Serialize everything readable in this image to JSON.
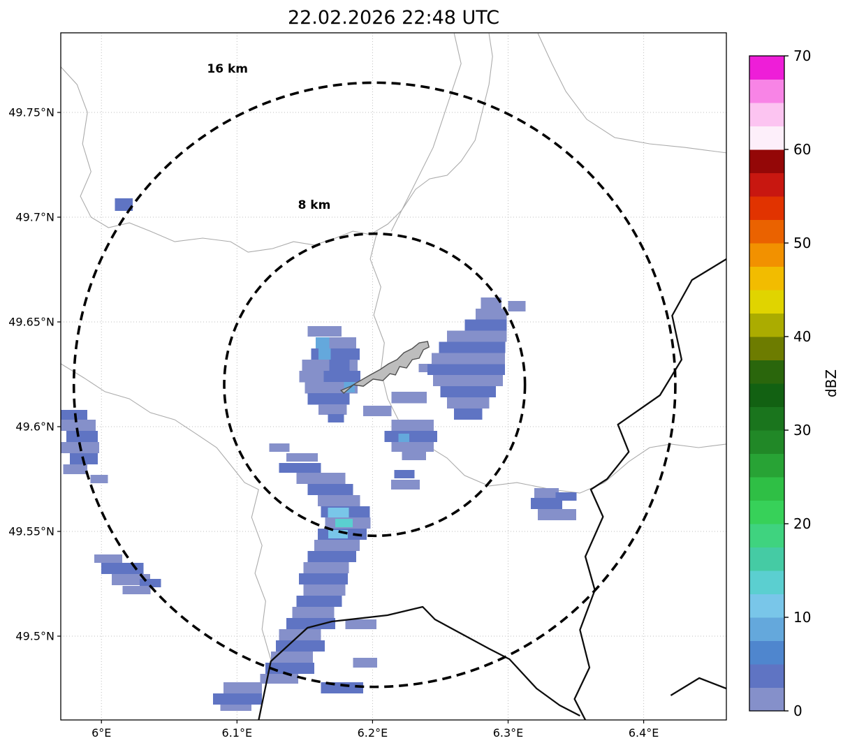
{
  "chart_data": {
    "type": "heatmap",
    "title": "22.02.2026 22:48 UTC",
    "xlabel": "",
    "ylabel": "",
    "xlim": [
      5.97,
      6.461
    ],
    "ylim": [
      49.46,
      49.788
    ],
    "grid": true,
    "x_ticks": [
      {
        "v": 6.0,
        "label": "6°E"
      },
      {
        "v": 6.1,
        "label": "6.1°E"
      },
      {
        "v": 6.2,
        "label": "6.2°E"
      },
      {
        "v": 6.3,
        "label": "6.3°E"
      },
      {
        "v": 6.4,
        "label": "6.4°E"
      }
    ],
    "y_ticks": [
      {
        "v": 49.5,
        "label": "49.5°N"
      },
      {
        "v": 49.55,
        "label": "49.55°N"
      },
      {
        "v": 49.6,
        "label": "49.6°N"
      },
      {
        "v": 49.65,
        "label": "49.65°N"
      },
      {
        "v": 49.7,
        "label": "49.7°N"
      },
      {
        "v": 49.75,
        "label": "49.75°N"
      }
    ],
    "colorbar": {
      "label": "dBZ",
      "min": 0,
      "max": 70,
      "step": 2.5,
      "ticks": [
        0,
        10,
        20,
        30,
        40,
        50,
        60,
        70
      ],
      "colors": [
        "#8590ca",
        "#5f74c3",
        "#4f86ce",
        "#64a8dc",
        "#79c6e9",
        "#5bcfd0",
        "#45cba4",
        "#3fd37f",
        "#37d159",
        "#2fbf45",
        "#28a335",
        "#218827",
        "#1a751d",
        "#126112",
        "#2a660c",
        "#6d7c00",
        "#abac00",
        "#e0d400",
        "#f2bc00",
        "#f29100",
        "#ea6200",
        "#e13300",
        "#c81710",
        "#940707",
        "#fdeffa",
        "#fcc4f1",
        "#f884e6",
        "#ee1ed8"
      ]
    },
    "range_rings": {
      "center_lon": 6.2015,
      "center_lat": 49.62,
      "rings": [
        {
          "radius_km": 8,
          "label": "8 km",
          "label_lon": 6.157,
          "label_lat": 49.706
        },
        {
          "radius_km": 16,
          "label": "16 km",
          "label_lon": 6.093,
          "label_lat": 49.771
        }
      ]
    },
    "echoes_format": [
      "lon_west",
      "lat_north",
      "width_deg",
      "height_deg",
      "dbz"
    ],
    "echoes": [
      [
        6.01,
        49.709,
        0.013,
        0.006,
        4
      ],
      [
        6.152,
        49.648,
        0.025,
        0.005,
        2
      ],
      [
        6.158,
        49.6427,
        0.03,
        0.0055,
        2
      ],
      [
        6.158,
        49.6427,
        0.01,
        0.0055,
        9
      ],
      [
        6.1546,
        49.6373,
        0.036,
        0.0055,
        4
      ],
      [
        6.16,
        49.6373,
        0.009,
        0.0055,
        9
      ],
      [
        6.148,
        49.632,
        0.041,
        0.0055,
        2
      ],
      [
        6.168,
        49.632,
        0.015,
        0.0055,
        4
      ],
      [
        6.146,
        49.6267,
        0.045,
        0.0055,
        4
      ],
      [
        6.146,
        49.6267,
        0.018,
        0.0055,
        2
      ],
      [
        6.15,
        49.6213,
        0.039,
        0.0055,
        2
      ],
      [
        6.179,
        49.6213,
        0.008,
        0.005,
        9
      ],
      [
        6.152,
        49.616,
        0.031,
        0.0055,
        4
      ],
      [
        6.16,
        49.6107,
        0.021,
        0.005,
        2
      ],
      [
        6.167,
        49.606,
        0.012,
        0.004,
        4
      ],
      [
        6.193,
        49.61,
        0.021,
        0.005,
        2
      ],
      [
        6.214,
        49.6167,
        0.026,
        0.0055,
        2
      ],
      [
        6.234,
        49.63,
        0.015,
        0.004,
        2
      ],
      [
        6.28,
        49.6617,
        0.015,
        0.0053,
        2
      ],
      [
        6.276,
        49.6564,
        0.023,
        0.0053,
        2
      ],
      [
        6.268,
        49.6511,
        0.031,
        0.0053,
        4
      ],
      [
        6.255,
        49.6458,
        0.044,
        0.0053,
        2
      ],
      [
        6.249,
        49.6405,
        0.049,
        0.0053,
        4
      ],
      [
        6.2437,
        49.6352,
        0.054,
        0.0053,
        2
      ],
      [
        6.2406,
        49.6299,
        0.057,
        0.0053,
        4
      ],
      [
        6.2447,
        49.6246,
        0.0515,
        0.0053,
        2
      ],
      [
        6.25,
        49.6193,
        0.041,
        0.0053,
        4
      ],
      [
        6.255,
        49.614,
        0.031,
        0.0053,
        2
      ],
      [
        6.26,
        49.6087,
        0.021,
        0.0053,
        4
      ],
      [
        6.3,
        49.66,
        0.013,
        0.005,
        2
      ],
      [
        6.214,
        49.6033,
        0.031,
        0.0053,
        2
      ],
      [
        6.2087,
        49.598,
        0.039,
        0.0053,
        4
      ],
      [
        6.219,
        49.5967,
        0.008,
        0.004,
        9
      ],
      [
        6.214,
        49.5927,
        0.031,
        0.0047,
        2
      ],
      [
        6.2216,
        49.588,
        0.018,
        0.004,
        2
      ],
      [
        6.216,
        49.5793,
        0.015,
        0.004,
        4
      ],
      [
        6.2138,
        49.5747,
        0.021,
        0.0047,
        2
      ],
      [
        6.1237,
        49.592,
        0.015,
        0.004,
        2
      ],
      [
        6.1365,
        49.5873,
        0.023,
        0.004,
        2
      ],
      [
        6.131,
        49.5827,
        0.031,
        0.0047,
        4
      ],
      [
        6.144,
        49.578,
        0.036,
        0.0053,
        2
      ],
      [
        6.152,
        49.5727,
        0.0335,
        0.0053,
        4
      ],
      [
        6.1597,
        49.5673,
        0.031,
        0.0053,
        2
      ],
      [
        6.162,
        49.562,
        0.036,
        0.0053,
        4
      ],
      [
        6.167,
        49.5613,
        0.0155,
        0.0047,
        11
      ],
      [
        6.1649,
        49.5567,
        0.0335,
        0.0053,
        2
      ],
      [
        6.1726,
        49.556,
        0.0129,
        0.004,
        13
      ],
      [
        6.1597,
        49.5513,
        0.036,
        0.0053,
        4
      ],
      [
        6.1674,
        49.5507,
        0.0144,
        0.004,
        11
      ],
      [
        6.157,
        49.546,
        0.0335,
        0.0053,
        2
      ],
      [
        6.152,
        49.5407,
        0.036,
        0.0053,
        4
      ],
      [
        6.149,
        49.5353,
        0.0335,
        0.0053,
        2
      ],
      [
        6.1458,
        49.53,
        0.036,
        0.0053,
        4
      ],
      [
        6.149,
        49.5247,
        0.031,
        0.0053,
        2
      ],
      [
        6.144,
        49.5193,
        0.0335,
        0.0053,
        4
      ],
      [
        6.1407,
        49.514,
        0.031,
        0.0053,
        2
      ],
      [
        6.1365,
        49.5087,
        0.036,
        0.0053,
        4
      ],
      [
        6.131,
        49.5033,
        0.031,
        0.0053,
        2
      ],
      [
        6.1288,
        49.498,
        0.036,
        0.0053,
        4
      ],
      [
        6.125,
        49.4927,
        0.031,
        0.0053,
        2
      ],
      [
        6.121,
        49.4873,
        0.036,
        0.0053,
        4
      ],
      [
        6.117,
        49.482,
        0.0283,
        0.0047,
        2
      ],
      [
        6.18,
        49.508,
        0.023,
        0.0047,
        2
      ],
      [
        6.1855,
        49.4897,
        0.018,
        0.0047,
        2
      ],
      [
        6.162,
        49.478,
        0.031,
        0.0053,
        4
      ],
      [
        6.09,
        49.478,
        0.0283,
        0.0053,
        2
      ],
      [
        6.0824,
        49.4727,
        0.036,
        0.0053,
        4
      ],
      [
        6.0876,
        49.4673,
        0.023,
        0.003,
        2
      ],
      [
        5.97,
        49.608,
        0.0196,
        0.0047,
        4
      ],
      [
        5.97,
        49.6033,
        0.0258,
        0.0053,
        2
      ],
      [
        5.974,
        49.598,
        0.0232,
        0.0053,
        4
      ],
      [
        5.97,
        49.5927,
        0.0283,
        0.0053,
        2
      ],
      [
        5.9768,
        49.5873,
        0.0206,
        0.0053,
        4
      ],
      [
        5.9717,
        49.582,
        0.018,
        0.0047,
        2
      ],
      [
        5.992,
        49.577,
        0.0129,
        0.004,
        2
      ],
      [
        5.9948,
        49.539,
        0.0206,
        0.004,
        2
      ],
      [
        6.0,
        49.535,
        0.031,
        0.0053,
        4
      ],
      [
        6.0077,
        49.5297,
        0.0283,
        0.0053,
        2
      ],
      [
        6.0283,
        49.5273,
        0.0155,
        0.004,
        4
      ],
      [
        6.0155,
        49.524,
        0.0206,
        0.004,
        2
      ],
      [
        6.3194,
        49.5707,
        0.018,
        0.0047,
        2
      ],
      [
        6.3168,
        49.566,
        0.0232,
        0.0053,
        4
      ],
      [
        6.322,
        49.5607,
        0.0283,
        0.0053,
        2
      ],
      [
        6.335,
        49.5687,
        0.0155,
        0.004,
        4
      ]
    ],
    "airport_outline": [
      [
        6.1788,
        49.616
      ],
      [
        6.186,
        49.62
      ],
      [
        6.1932,
        49.6193
      ],
      [
        6.2004,
        49.6227
      ],
      [
        6.2076,
        49.622
      ],
      [
        6.2128,
        49.6253
      ],
      [
        6.2169,
        49.6247
      ],
      [
        6.22,
        49.6287
      ],
      [
        6.2251,
        49.628
      ],
      [
        6.2293,
        49.632
      ],
      [
        6.2344,
        49.6327
      ],
      [
        6.2375,
        49.6367
      ],
      [
        6.2416,
        49.638
      ],
      [
        6.2406,
        49.6407
      ],
      [
        6.2344,
        49.64
      ],
      [
        6.2293,
        49.6373
      ],
      [
        6.2231,
        49.6353
      ],
      [
        6.218,
        49.632
      ],
      [
        6.2118,
        49.63
      ],
      [
        6.2056,
        49.6273
      ],
      [
        6.1983,
        49.6247
      ],
      [
        6.1911,
        49.622
      ],
      [
        6.1839,
        49.6193
      ],
      [
        6.1767,
        49.6173
      ]
    ],
    "borders": [
      [
        [
          6.461,
          49.68
        ],
        [
          6.4356,
          49.67
        ],
        [
          6.421,
          49.653
        ],
        [
          6.428,
          49.632
        ],
        [
          6.412,
          49.615
        ],
        [
          6.381,
          49.601
        ],
        [
          6.389,
          49.588
        ],
        [
          6.373,
          49.575
        ],
        [
          6.361,
          49.57
        ],
        [
          6.37,
          49.557
        ],
        [
          6.357,
          49.538
        ],
        [
          6.364,
          49.522
        ],
        [
          6.353,
          49.503
        ],
        [
          6.36,
          49.485
        ],
        [
          6.349,
          49.47
        ],
        [
          6.357,
          49.46
        ]
      ],
      [
        [
          6.116,
          49.46
        ],
        [
          6.125,
          49.488
        ],
        [
          6.152,
          49.504
        ],
        [
          6.17,
          49.507
        ],
        [
          6.211,
          49.51
        ],
        [
          6.237,
          49.514
        ],
        [
          6.246,
          49.508
        ],
        [
          6.286,
          49.494
        ],
        [
          6.301,
          49.489
        ],
        [
          6.321,
          49.475
        ],
        [
          6.338,
          49.467
        ],
        [
          6.353,
          49.462
        ]
      ],
      [
        [
          6.42,
          49.4717
        ],
        [
          6.441,
          49.48
        ],
        [
          6.461,
          49.475
        ]
      ]
    ],
    "rivers": [
      [
        [
          5.9701,
          49.7717
        ],
        [
          5.982,
          49.7633
        ],
        [
          5.9897,
          49.75
        ],
        [
          5.9861,
          49.735
        ],
        [
          5.9923,
          49.7217
        ],
        [
          5.9845,
          49.71
        ],
        [
          5.9923,
          49.7
        ],
        [
          6.0052,
          49.695
        ],
        [
          6.0206,
          49.6973
        ],
        [
          6.0361,
          49.6933
        ],
        [
          6.0541,
          49.6883
        ],
        [
          6.0747,
          49.69
        ],
        [
          6.0953,
          49.6883
        ],
        [
          6.1082,
          49.6833
        ],
        [
          6.1262,
          49.685
        ],
        [
          6.1417,
          49.6883
        ],
        [
          6.1571,
          49.6867
        ],
        [
          6.1726,
          49.69
        ],
        [
          6.1855,
          49.6933
        ],
        [
          6.1983,
          49.6917
        ],
        [
          6.2112,
          49.6967
        ],
        [
          6.2215,
          49.7033
        ],
        [
          6.2318,
          49.7133
        ],
        [
          6.2421,
          49.7183
        ],
        [
          6.255,
          49.72
        ],
        [
          6.2653,
          49.7267
        ],
        [
          6.2756,
          49.7367
        ],
        [
          6.2808,
          49.75
        ],
        [
          6.2859,
          49.7633
        ],
        [
          6.2885,
          49.7767
        ],
        [
          6.2859,
          49.7877
        ]
      ],
      [
        [
          6.322,
          49.7877
        ],
        [
          6.3323,
          49.7733
        ],
        [
          6.3426,
          49.76
        ],
        [
          6.358,
          49.7467
        ],
        [
          6.3786,
          49.738
        ],
        [
          6.4044,
          49.735
        ],
        [
          6.4302,
          49.7333
        ],
        [
          6.4611,
          49.7307
        ]
      ],
      [
        [
          6.2035,
          49.6933
        ],
        [
          6.1983,
          49.68
        ],
        [
          6.2061,
          49.6667
        ],
        [
          6.2009,
          49.6533
        ],
        [
          6.2087,
          49.64
        ],
        [
          6.2061,
          49.6267
        ],
        [
          6.2112,
          49.6133
        ],
        [
          6.219,
          49.6033
        ],
        [
          6.2344,
          49.5933
        ],
        [
          6.255,
          49.585
        ],
        [
          6.2679,
          49.5767
        ],
        [
          6.286,
          49.5717
        ],
        [
          6.3065,
          49.5733
        ],
        [
          6.3323,
          49.57
        ],
        [
          6.3529,
          49.5683
        ],
        [
          6.371,
          49.5733
        ]
      ],
      [
        [
          5.9701,
          49.63
        ],
        [
          5.9871,
          49.6233
        ],
        [
          6.0026,
          49.6167
        ],
        [
          6.0206,
          49.6133
        ],
        [
          6.0361,
          49.6067
        ],
        [
          6.0541,
          49.6033
        ],
        [
          6.0696,
          49.5967
        ],
        [
          6.085,
          49.59
        ],
        [
          6.0953,
          49.5817
        ],
        [
          6.1056,
          49.5733
        ],
        [
          6.1159,
          49.57
        ],
        [
          6.1108,
          49.5567
        ],
        [
          6.1185,
          49.5433
        ],
        [
          6.1133,
          49.53
        ],
        [
          6.1211,
          49.5167
        ],
        [
          6.1185,
          49.5033
        ],
        [
          6.1252,
          49.4883
        ]
      ],
      [
        [
          6.371,
          49.5733
        ],
        [
          6.389,
          49.5833
        ],
        [
          6.4044,
          49.59
        ],
        [
          6.42,
          49.5917
        ],
        [
          6.4405,
          49.59
        ],
        [
          6.4611,
          49.5917
        ]
      ],
      [
        [
          6.2138,
          49.6933
        ],
        [
          6.2447,
          49.7333
        ],
        [
          6.255,
          49.7533
        ],
        [
          6.2653,
          49.7733
        ],
        [
          6.2602,
          49.7877
        ]
      ]
    ]
  }
}
